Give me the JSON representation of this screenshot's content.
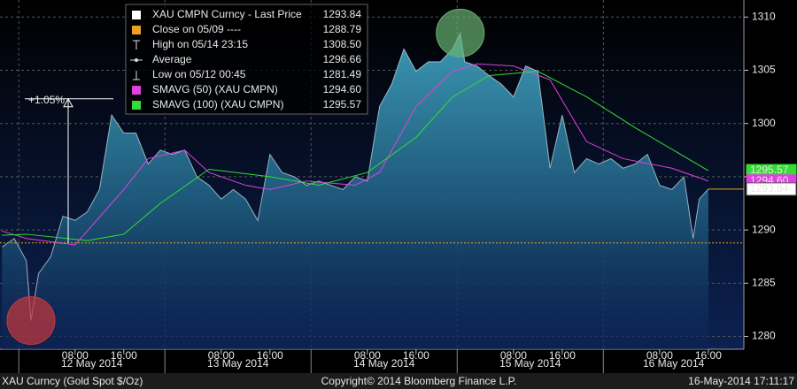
{
  "chart_data": {
    "type": "area",
    "ylim": [
      1278.8,
      1311.6
    ],
    "yticks": [
      1280,
      1285,
      1290,
      1295,
      1300,
      1305,
      1310
    ],
    "xlim": [
      "2014-05-11T19:40",
      "2014-05-16T21:50"
    ],
    "xticks": [
      {
        "value": "2014-05-12T08:00",
        "label": "08:00"
      },
      {
        "value": "2014-05-12T16:00",
        "label": "16:00"
      },
      {
        "value": "2014-05-13T08:00",
        "label": "08:00"
      },
      {
        "value": "2014-05-13T16:00",
        "label": "16:00"
      },
      {
        "value": "2014-05-14T08:00",
        "label": "08:00"
      },
      {
        "value": "2014-05-14T16:00",
        "label": "16:00"
      },
      {
        "value": "2014-05-15T08:00",
        "label": "08:00"
      },
      {
        "value": "2014-05-15T16:00",
        "label": "16:00"
      },
      {
        "value": "2014-05-16T08:00",
        "label": "08:00"
      },
      {
        "value": "2014-05-16T16:00",
        "label": "16:00"
      }
    ],
    "xgroups": [
      {
        "label": "12 May 2014",
        "start": "2014-05-11T22:45",
        "end": "2014-05-12T22:45"
      },
      {
        "label": "13 May 2014",
        "start": "2014-05-12T22:45",
        "end": "2014-05-13T22:45"
      },
      {
        "label": "14 May 2014",
        "start": "2014-05-13T22:45",
        "end": "2014-05-14T22:45"
      },
      {
        "label": "15 May 2014",
        "start": "2014-05-14T22:45",
        "end": "2014-05-15T22:45"
      },
      {
        "label": "16 May 2014",
        "start": "2014-05-15T22:45",
        "end": "2014-05-16T21:50"
      }
    ],
    "grid": true,
    "series": [
      {
        "name": "XAU CMPN Curncy - Last Price",
        "color": "#2f8aa5",
        "x": [
          "2014-05-11T20:00",
          "2014-05-11T22:00",
          "2014-05-12T00:00",
          "2014-05-12T00:45",
          "2014-05-12T02:00",
          "2014-05-12T04:00",
          "2014-05-12T06:00",
          "2014-05-12T08:00",
          "2014-05-12T10:00",
          "2014-05-12T12:00",
          "2014-05-12T14:00",
          "2014-05-12T16:00",
          "2014-05-12T18:00",
          "2014-05-12T20:00",
          "2014-05-12T22:00",
          "2014-05-13T00:00",
          "2014-05-13T02:00",
          "2014-05-13T04:00",
          "2014-05-13T06:00",
          "2014-05-13T08:00",
          "2014-05-13T10:00",
          "2014-05-13T12:00",
          "2014-05-13T14:00",
          "2014-05-13T16:00",
          "2014-05-13T18:00",
          "2014-05-13T20:00",
          "2014-05-13T22:00",
          "2014-05-14T00:00",
          "2014-05-14T02:00",
          "2014-05-14T04:00",
          "2014-05-14T06:00",
          "2014-05-14T08:00",
          "2014-05-14T10:00",
          "2014-05-14T12:00",
          "2014-05-14T14:00",
          "2014-05-14T16:00",
          "2014-05-14T18:00",
          "2014-05-14T20:00",
          "2014-05-14T22:00",
          "2014-05-14T23:15",
          "2014-05-15T00:00",
          "2014-05-15T02:00",
          "2014-05-15T04:00",
          "2014-05-15T06:00",
          "2014-05-15T08:00",
          "2014-05-15T10:00",
          "2014-05-15T12:00",
          "2014-05-15T14:00",
          "2014-05-15T16:00",
          "2014-05-15T18:00",
          "2014-05-15T20:00",
          "2014-05-15T22:00",
          "2014-05-16T00:00",
          "2014-05-16T02:00",
          "2014-05-16T04:00",
          "2014-05-16T06:00",
          "2014-05-16T08:00",
          "2014-05-16T10:00",
          "2014-05-16T12:00",
          "2014-05-16T13:30",
          "2014-05-16T14:30",
          "2014-05-16T16:00"
        ],
        "values": [
          1288.4,
          1289.2,
          1287.1,
          1281.49,
          1285.9,
          1287.5,
          1291.3,
          1290.9,
          1291.7,
          1293.8,
          1300.8,
          1299.1,
          1299.1,
          1296.2,
          1297.5,
          1297.1,
          1297.5,
          1295.0,
          1294.2,
          1292.9,
          1293.8,
          1292.9,
          1290.9,
          1297.1,
          1295.4,
          1295.0,
          1294.2,
          1294.6,
          1294.2,
          1293.8,
          1295.0,
          1294.6,
          1301.6,
          1303.7,
          1307.0,
          1304.9,
          1305.8,
          1305.8,
          1307.0,
          1308.5,
          1305.8,
          1305.4,
          1304.5,
          1303.7,
          1302.5,
          1305.4,
          1304.9,
          1295.8,
          1300.8,
          1295.4,
          1296.7,
          1296.2,
          1296.7,
          1295.8,
          1296.2,
          1297.1,
          1294.2,
          1293.8,
          1295.0,
          1289.2,
          1292.9,
          1293.84
        ]
      },
      {
        "name": "SMAVG (50) (XAU CMPN)",
        "color": "#e040e0",
        "x": [
          "2014-05-11T20:00",
          "2014-05-12T00:00",
          "2014-05-12T08:00",
          "2014-05-12T16:00",
          "2014-05-12T20:00",
          "2014-05-13T02:00",
          "2014-05-13T06:00",
          "2014-05-13T12:00",
          "2014-05-13T16:00",
          "2014-05-13T22:00",
          "2014-05-14T06:00",
          "2014-05-14T10:00",
          "2014-05-14T16:00",
          "2014-05-14T22:00",
          "2014-05-15T02:00",
          "2014-05-15T08:00",
          "2014-05-15T14:00",
          "2014-05-15T20:00",
          "2014-05-16T02:00",
          "2014-05-16T10:00",
          "2014-05-16T16:00"
        ],
        "values": [
          1289.9,
          1289.2,
          1288.6,
          1293.8,
          1296.7,
          1297.5,
          1295.4,
          1294.2,
          1293.8,
          1294.6,
          1294.2,
          1295.4,
          1301.6,
          1304.9,
          1305.6,
          1305.4,
          1304.1,
          1298.3,
          1296.7,
          1295.8,
          1294.6
        ]
      },
      {
        "name": "SMAVG (100) (XAU CMPN)",
        "color": "#33dd33",
        "x": [
          "2014-05-11T20:00",
          "2014-05-12T00:00",
          "2014-05-12T10:00",
          "2014-05-12T16:00",
          "2014-05-12T22:00",
          "2014-05-13T06:00",
          "2014-05-13T16:00",
          "2014-05-14T00:00",
          "2014-05-14T08:00",
          "2014-05-14T16:00",
          "2014-05-14T22:00",
          "2014-05-15T04:00",
          "2014-05-15T12:00",
          "2014-05-15T20:00",
          "2014-05-16T04:00",
          "2014-05-16T16:00"
        ],
        "values": [
          1289.5,
          1289.6,
          1289.0,
          1289.6,
          1292.5,
          1295.7,
          1295.0,
          1294.2,
          1295.4,
          1298.7,
          1302.5,
          1304.5,
          1304.9,
          1302.5,
          1299.6,
          1295.57
        ]
      }
    ],
    "legend": [
      {
        "label": "XAU CMPN Curncy - Last Price",
        "value": 1293.84,
        "color": "#ffffff"
      },
      {
        "label": "Close on 05/09 ----",
        "value": 1288.79,
        "color": "#f0a020"
      },
      {
        "label": "High on 05/14 23:15",
        "value": 1308.5,
        "value_label": "1308.50"
      },
      {
        "label": "Average",
        "value": 1296.66
      },
      {
        "label": "Low on 05/12 00:45",
        "value": 1281.49
      },
      {
        "label": "SMAVG (50) (XAU CMPN)",
        "value": 1294.6,
        "value_label": "1294.60",
        "color": "#e040e0"
      },
      {
        "label": "SMAVG (100) (XAU CMPN)",
        "value": 1295.57,
        "color": "#33dd33"
      }
    ],
    "annotation": {
      "value": 1.05,
      "label": "+1.05%"
    },
    "highlight": {
      "low_color": "#c8383c",
      "high_color": "#68b070"
    },
    "footer": {
      "left": "XAU Curncy (Gold Spot  $/Oz)",
      "center": "Copyright© 2014 Bloomberg Finance L.P.",
      "right": "16-May-2014 17:11:17"
    }
  }
}
